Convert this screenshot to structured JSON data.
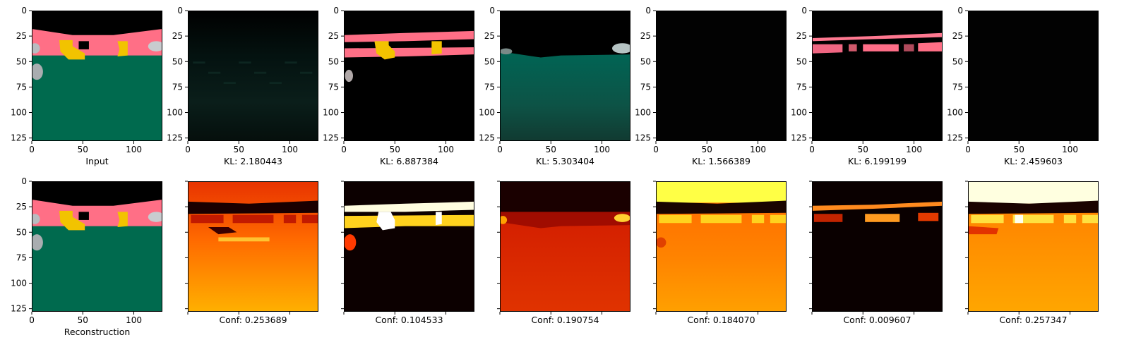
{
  "chart_data": {
    "type": "image-grid",
    "image_size": [
      128,
      128
    ],
    "axis_ticks": [
      0,
      50,
      100
    ],
    "y_axis_ticks": [
      0,
      25,
      50,
      75,
      100,
      125
    ],
    "top_row": [
      {
        "caption": "Input",
        "kind": "segmentation-input"
      },
      {
        "caption": "KL: 2.180443",
        "kind": "channel-dark-teal"
      },
      {
        "caption": "KL: 6.887384",
        "kind": "channel-pink-yellow"
      },
      {
        "caption": "KL: 5.303404",
        "kind": "channel-teal"
      },
      {
        "caption": "KL: 1.566389",
        "kind": "channel-black"
      },
      {
        "caption": "KL: 6.199199",
        "kind": "channel-pink"
      },
      {
        "caption": "KL: 2.459603",
        "kind": "channel-black"
      }
    ],
    "bottom_row": [
      {
        "caption": "Reconstruction",
        "kind": "segmentation-reconstruction"
      },
      {
        "caption": "Conf: 0.253689",
        "kind": "heat-red-orange"
      },
      {
        "caption": "Conf: 0.104533",
        "kind": "heat-dark-white"
      },
      {
        "caption": "Conf: 0.190754",
        "kind": "heat-red"
      },
      {
        "caption": "Conf: 0.184070",
        "kind": "heat-yellow-orange"
      },
      {
        "caption": "Conf: 0.009607",
        "kind": "heat-dark-orange"
      },
      {
        "caption": "Conf: 0.257347",
        "kind": "heat-white-orange"
      }
    ]
  },
  "colors": {
    "pink": "#ff6f86",
    "teal": "#006a4e",
    "yellow": "#f2c300",
    "black": "#000000"
  }
}
